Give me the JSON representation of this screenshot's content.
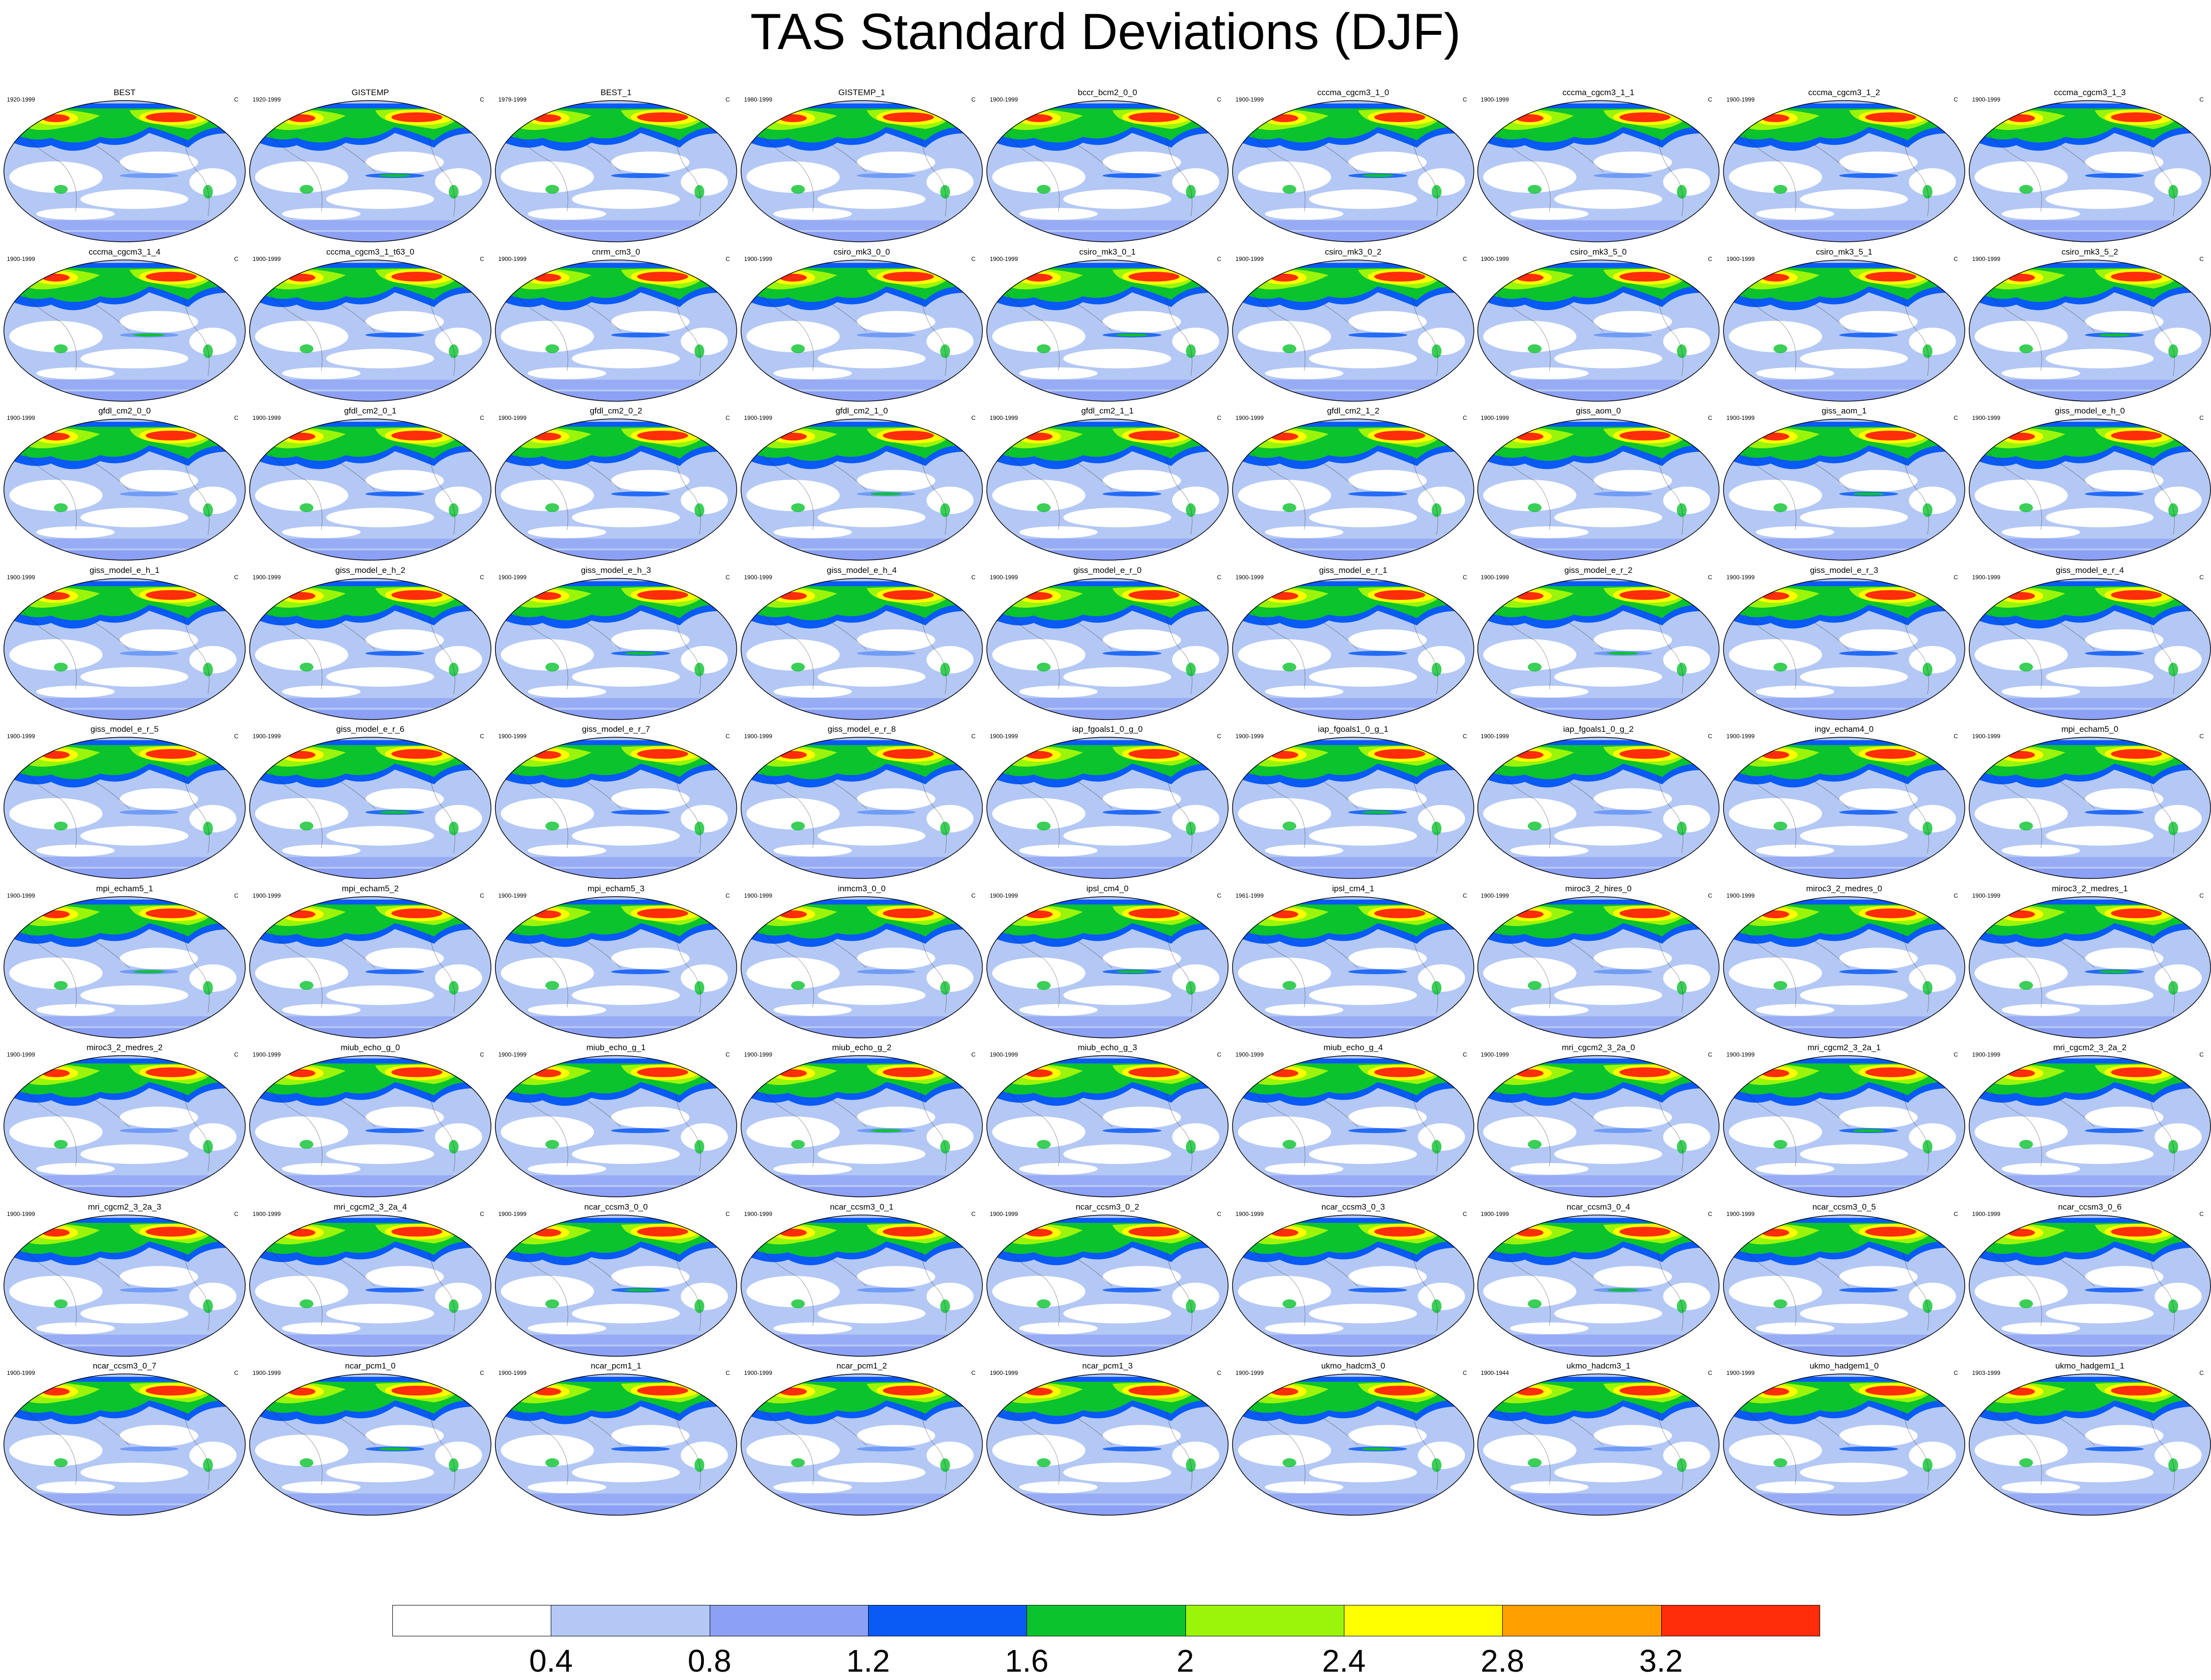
{
  "title": "TAS Standard Deviations (DJF)",
  "unit": "C",
  "panels": [
    {
      "name": "BEST",
      "period": "1920-1999"
    },
    {
      "name": "GISTEMP",
      "period": "1920-1999"
    },
    {
      "name": "BEST_1",
      "period": "1979-1999"
    },
    {
      "name": "GISTEMP_1",
      "period": "1980-1999"
    },
    {
      "name": "bccr_bcm2_0_0",
      "period": "1900-1999"
    },
    {
      "name": "cccma_cgcm3_1_0",
      "period": "1900-1999"
    },
    {
      "name": "cccma_cgcm3_1_1",
      "period": "1900-1999"
    },
    {
      "name": "cccma_cgcm3_1_2",
      "period": "1900-1999"
    },
    {
      "name": "cccma_cgcm3_1_3",
      "period": "1900-1999"
    },
    {
      "name": "cccma_cgcm3_1_4",
      "period": "1900-1999"
    },
    {
      "name": "cccma_cgcm3_1_t63_0",
      "period": "1900-1999"
    },
    {
      "name": "cnrm_cm3_0",
      "period": "1900-1999"
    },
    {
      "name": "csiro_mk3_0_0",
      "period": "1900-1999"
    },
    {
      "name": "csiro_mk3_0_1",
      "period": "1900-1999"
    },
    {
      "name": "csiro_mk3_0_2",
      "period": "1900-1999"
    },
    {
      "name": "csiro_mk3_5_0",
      "period": "1900-1999"
    },
    {
      "name": "csiro_mk3_5_1",
      "period": "1900-1999"
    },
    {
      "name": "csiro_mk3_5_2",
      "period": "1900-1999"
    },
    {
      "name": "gfdl_cm2_0_0",
      "period": "1900-1999"
    },
    {
      "name": "gfdl_cm2_0_1",
      "period": "1900-1999"
    },
    {
      "name": "gfdl_cm2_0_2",
      "period": "1900-1999"
    },
    {
      "name": "gfdl_cm2_1_0",
      "period": "1900-1999"
    },
    {
      "name": "gfdl_cm2_1_1",
      "period": "1900-1999"
    },
    {
      "name": "gfdl_cm2_1_2",
      "period": "1900-1999"
    },
    {
      "name": "giss_aom_0",
      "period": "1900-1999"
    },
    {
      "name": "giss_aom_1",
      "period": "1900-1999"
    },
    {
      "name": "giss_model_e_h_0",
      "period": "1900-1999"
    },
    {
      "name": "giss_model_e_h_1",
      "period": "1900-1999"
    },
    {
      "name": "giss_model_e_h_2",
      "period": "1900-1999"
    },
    {
      "name": "giss_model_e_h_3",
      "period": "1900-1999"
    },
    {
      "name": "giss_model_e_h_4",
      "period": "1900-1999"
    },
    {
      "name": "giss_model_e_r_0",
      "period": "1900-1999"
    },
    {
      "name": "giss_model_e_r_1",
      "period": "1900-1999"
    },
    {
      "name": "giss_model_e_r_2",
      "period": "1900-1999"
    },
    {
      "name": "giss_model_e_r_3",
      "period": "1900-1999"
    },
    {
      "name": "giss_model_e_r_4",
      "period": "1900-1999"
    },
    {
      "name": "giss_model_e_r_5",
      "period": "1900-1999"
    },
    {
      "name": "giss_model_e_r_6",
      "period": "1900-1999"
    },
    {
      "name": "giss_model_e_r_7",
      "period": "1900-1999"
    },
    {
      "name": "giss_model_e_r_8",
      "period": "1900-1999"
    },
    {
      "name": "iap_fgoals1_0_g_0",
      "period": "1900-1999"
    },
    {
      "name": "iap_fgoals1_0_g_1",
      "period": "1900-1999"
    },
    {
      "name": "iap_fgoals1_0_g_2",
      "period": "1900-1999"
    },
    {
      "name": "ingv_echam4_0",
      "period": "1900-1999"
    },
    {
      "name": "mpi_echam5_0",
      "period": "1900-1999"
    },
    {
      "name": "mpi_echam5_1",
      "period": "1900-1999"
    },
    {
      "name": "mpi_echam5_2",
      "period": "1900-1999"
    },
    {
      "name": "mpi_echam5_3",
      "period": "1900-1999"
    },
    {
      "name": "inmcm3_0_0",
      "period": "1900-1999"
    },
    {
      "name": "ipsl_cm4_0",
      "period": "1900-1999"
    },
    {
      "name": "ipsl_cm4_1",
      "period": "1961-1999"
    },
    {
      "name": "miroc3_2_hires_0",
      "period": "1900-1999"
    },
    {
      "name": "miroc3_2_medres_0",
      "period": "1900-1999"
    },
    {
      "name": "miroc3_2_medres_1",
      "period": "1900-1999"
    },
    {
      "name": "miroc3_2_medres_2",
      "period": "1900-1999"
    },
    {
      "name": "miub_echo_g_0",
      "period": "1900-1999"
    },
    {
      "name": "miub_echo_g_1",
      "period": "1900-1999"
    },
    {
      "name": "miub_echo_g_2",
      "period": "1900-1999"
    },
    {
      "name": "miub_echo_g_3",
      "period": "1900-1999"
    },
    {
      "name": "miub_echo_g_4",
      "period": "1900-1999"
    },
    {
      "name": "mri_cgcm2_3_2a_0",
      "period": "1900-1999"
    },
    {
      "name": "mri_cgcm2_3_2a_1",
      "period": "1900-1999"
    },
    {
      "name": "mri_cgcm2_3_2a_2",
      "period": "1900-1999"
    },
    {
      "name": "mri_cgcm2_3_2a_3",
      "period": "1900-1999"
    },
    {
      "name": "mri_cgcm2_3_2a_4",
      "period": "1900-1999"
    },
    {
      "name": "ncar_ccsm3_0_0",
      "period": "1900-1999"
    },
    {
      "name": "ncar_ccsm3_0_1",
      "period": "1900-1999"
    },
    {
      "name": "ncar_ccsm3_0_2",
      "period": "1900-1999"
    },
    {
      "name": "ncar_ccsm3_0_3",
      "period": "1900-1999"
    },
    {
      "name": "ncar_ccsm3_0_4",
      "period": "1900-1999"
    },
    {
      "name": "ncar_ccsm3_0_5",
      "period": "1900-1999"
    },
    {
      "name": "ncar_ccsm3_0_6",
      "period": "1900-1999"
    },
    {
      "name": "ncar_ccsm3_0_7",
      "period": "1900-1999"
    },
    {
      "name": "ncar_pcm1_0",
      "period": "1900-1999"
    },
    {
      "name": "ncar_pcm1_1",
      "period": "1900-1999"
    },
    {
      "name": "ncar_pcm1_2",
      "period": "1900-1999"
    },
    {
      "name": "ncar_pcm1_3",
      "period": "1900-1999"
    },
    {
      "name": "ukmo_hadcm3_0",
      "period": "1900-1999"
    },
    {
      "name": "ukmo_hadcm3_1",
      "period": "1900-1944"
    },
    {
      "name": "ukmo_hadgem1_0",
      "period": "1900-1999"
    },
    {
      "name": "ukmo_hadgem1_1",
      "period": "1903-1999"
    }
  ],
  "colorbar": {
    "colors": [
      "#ffffff",
      "#b4c8f5",
      "#8ca0f5",
      "#0a5af5",
      "#0ac32d",
      "#9bf50a",
      "#ffff00",
      "#ffa000",
      "#ff2d0a"
    ],
    "labels": [
      "0.4",
      "0.8",
      "1.2",
      "1.6",
      "2",
      "2.4",
      "2.8",
      "3.2"
    ]
  }
}
